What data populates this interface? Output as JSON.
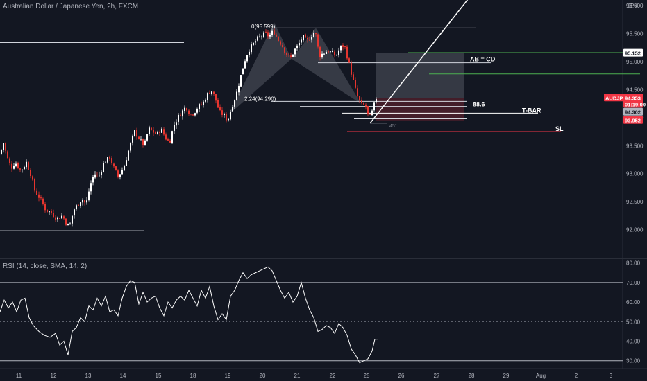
{
  "header": {
    "title": "Australian Dollar / Japanese Yen, 2h, FXCM"
  },
  "rsi": {
    "title": "RSI (14, close, SMA, 14, 2)"
  },
  "colors": {
    "bg": "#131722",
    "grid": "#1e222d",
    "up": "#ffffff",
    "down": "#e5352f",
    "text": "#b2b5be",
    "red": "#f23645",
    "green": "#4caf50"
  },
  "chart_data": [
    {
      "type": "candlestick",
      "title": "Australian Dollar / Japanese Yen, 2h, FXCM",
      "currency": "JPY",
      "y_ticks": [
        96.0,
        95.5,
        95.0,
        94.5,
        94.0,
        93.5,
        93.0,
        92.5,
        92.0
      ],
      "y_tick_labels": [
        "96.000",
        "95.500",
        "95.000",
        "94.500",
        "94.000",
        "93.500",
        "93.000",
        "92.500",
        "92.000"
      ],
      "ylim": [
        91.5,
        96.1
      ],
      "x_labels": [
        "11",
        "12",
        "13",
        "14",
        "15",
        "18",
        "19",
        "20",
        "21",
        "22",
        "25",
        "26",
        "27",
        "28",
        "29",
        "Aug",
        "2",
        "3"
      ],
      "path_anchors": [
        [
          0,
          93.35
        ],
        [
          5,
          93.55
        ],
        [
          10,
          93.3
        ],
        [
          16,
          93.1
        ],
        [
          22,
          93.2
        ],
        [
          30,
          93.05
        ],
        [
          38,
          93.2
        ],
        [
          44,
          93.0
        ],
        [
          50,
          92.7
        ],
        [
          58,
          92.55
        ],
        [
          66,
          92.35
        ],
        [
          74,
          92.3
        ],
        [
          82,
          92.2
        ],
        [
          90,
          92.25
        ],
        [
          96,
          92.1
        ],
        [
          100,
          92.05
        ],
        [
          106,
          92.35
        ],
        [
          112,
          92.45
        ],
        [
          118,
          92.55
        ],
        [
          124,
          92.45
        ],
        [
          130,
          92.8
        ],
        [
          136,
          93.0
        ],
        [
          142,
          92.95
        ],
        [
          150,
          93.2
        ],
        [
          158,
          93.3
        ],
        [
          164,
          93.1
        ],
        [
          170,
          92.95
        ],
        [
          178,
          93.1
        ],
        [
          186,
          93.45
        ],
        [
          194,
          93.75
        ],
        [
          202,
          93.6
        ],
        [
          208,
          93.5
        ],
        [
          214,
          93.8
        ],
        [
          220,
          93.75
        ],
        [
          226,
          93.7
        ],
        [
          232,
          93.8
        ],
        [
          238,
          93.65
        ],
        [
          244,
          93.55
        ],
        [
          250,
          93.85
        ],
        [
          256,
          94.0
        ],
        [
          262,
          94.1
        ],
        [
          268,
          94.2
        ],
        [
          274,
          94.05
        ],
        [
          280,
          94.1
        ],
        [
          286,
          94.2
        ],
        [
          292,
          94.25
        ],
        [
          298,
          94.4
        ],
        [
          304,
          94.5
        ],
        [
          310,
          94.35
        ],
        [
          316,
          94.1
        ],
        [
          322,
          94.05
        ],
        [
          328,
          93.95
        ],
        [
          334,
          94.2
        ],
        [
          340,
          94.4
        ],
        [
          346,
          94.7
        ],
        [
          352,
          95.0
        ],
        [
          358,
          95.2
        ],
        [
          364,
          95.3
        ],
        [
          370,
          95.4
        ],
        [
          376,
          95.45
        ],
        [
          382,
          95.5
        ],
        [
          388,
          95.45
        ],
        [
          394,
          95.55
        ],
        [
          400,
          95.4
        ],
        [
          406,
          95.3
        ],
        [
          412,
          95.15
        ],
        [
          418,
          95.05
        ],
        [
          424,
          95.2
        ],
        [
          430,
          95.3
        ],
        [
          436,
          95.45
        ],
        [
          442,
          95.35
        ],
        [
          448,
          95.45
        ],
        [
          454,
          95.55
        ],
        [
          460,
          95.1
        ],
        [
          466,
          95.15
        ],
        [
          472,
          95.2
        ],
        [
          478,
          95.15
        ],
        [
          484,
          95.1
        ],
        [
          490,
          95.25
        ],
        [
          496,
          95.3
        ],
        [
          502,
          95.0
        ],
        [
          506,
          94.8
        ],
        [
          510,
          94.6
        ],
        [
          514,
          94.4
        ],
        [
          518,
          94.3
        ],
        [
          522,
          94.2
        ],
        [
          526,
          94.25
        ],
        [
          530,
          94.05
        ],
        [
          534,
          94.0
        ],
        [
          538,
          94.2
        ],
        [
          542,
          94.35
        ]
      ],
      "horizontal_lines": [
        {
          "price": 95.6,
          "x_from": 390,
          "x_to": 685,
          "color": "#d1d4dc"
        },
        {
          "price": 95.34,
          "x_from": 0,
          "x_to": 265,
          "color": "#d1d4dc"
        },
        {
          "price": 95.16,
          "x_from": 588,
          "x_to": 922,
          "color": "#4caf50"
        },
        {
          "price": 94.98,
          "x_from": 458,
          "x_to": 708,
          "color": "#d1d4dc"
        },
        {
          "price": 94.78,
          "x_from": 618,
          "x_to": 922,
          "color": "#4caf50"
        },
        {
          "price": 94.29,
          "x_from": 390,
          "x_to": 672,
          "color": "#d1d4dc"
        },
        {
          "price": 94.2,
          "x_from": 432,
          "x_to": 672,
          "color": "#d1d4dc"
        },
        {
          "price": 94.08,
          "x_from": 492,
          "x_to": 775,
          "color": "#ffffff"
        },
        {
          "price": 93.98,
          "x_from": 510,
          "x_to": 672,
          "color": "#d1d4dc"
        },
        {
          "price": 93.75,
          "x_from": 500,
          "x_to": 808,
          "color": "#f23645"
        },
        {
          "price": 91.98,
          "x_from": 0,
          "x_to": 207,
          "color": "#d1d4dc"
        },
        {
          "price": 94.353,
          "x_from": 0,
          "x_to": 872,
          "color": "#f23645",
          "dashed": true
        }
      ],
      "labels": [
        {
          "text": "0(95.599)",
          "price": 95.63,
          "x": 362,
          "size": 8
        },
        {
          "text": "2.24(94.290)",
          "price": 94.34,
          "x": 352,
          "size": 8
        },
        {
          "text": "AB = CD",
          "price": 95.04,
          "x": 677,
          "size": 9,
          "bold": true
        },
        {
          "text": "88.6",
          "price": 94.24,
          "x": 681,
          "size": 9,
          "bold": true
        },
        {
          "text": "T-BAR",
          "price": 94.13,
          "x": 752,
          "size": 9,
          "bold": true
        },
        {
          "text": "SL",
          "price": 93.8,
          "x": 800,
          "size": 9,
          "bold": true
        },
        {
          "text": "45°",
          "price": 93.86,
          "x": 561,
          "size": 7,
          "color": "#787b86"
        }
      ],
      "position_box": {
        "x_from": 541,
        "x_to": 668,
        "profit_top": 95.16,
        "entry": 94.35,
        "stop": 93.95
      },
      "trend_line": {
        "from": [
          533,
          93.9
        ],
        "to": [
          686,
          96.3
        ]
      },
      "pattern_points": [
        [
          330,
          94.06
        ],
        [
          395,
          95.7
        ],
        [
          420,
          95.05
        ],
        [
          455,
          95.6
        ],
        [
          520,
          94.25
        ]
      ],
      "price_labels": [
        {
          "text": "95.152",
          "price": 95.152,
          "bg": "#ffffff",
          "fg": "#131722"
        },
        {
          "text": "AUDJPY",
          "price": 94.353,
          "bg": "#f23645",
          "fg": "#ffffff",
          "side": "left"
        },
        {
          "text": "94.353",
          "price": 94.353,
          "bg": "#f23645",
          "fg": "#ffffff"
        },
        {
          "text": "01:19:00",
          "price": 94.24,
          "bg": "#f23645",
          "fg": "#ffffff"
        },
        {
          "text": "94.302",
          "price": 94.1,
          "bg": "#b2b5be",
          "fg": "#131722"
        },
        {
          "text": "93.952",
          "price": 93.952,
          "bg": "#f23645",
          "fg": "#ffffff"
        }
      ]
    },
    {
      "type": "line",
      "title": "RSI (14, close, SMA, 14, 2)",
      "y_ticks": [
        80,
        70,
        60,
        50,
        40,
        30
      ],
      "y_tick_labels": [
        "80.00",
        "70.00",
        "60.00",
        "50.00",
        "40.00",
        "30.00"
      ],
      "ylim": [
        26,
        82
      ],
      "levels": [
        70,
        50,
        30
      ],
      "series": [
        {
          "values": [
            [
              0,
              55
            ],
            [
              6,
              61
            ],
            [
              12,
              57
            ],
            [
              18,
              60
            ],
            [
              24,
              55
            ],
            [
              30,
              61
            ],
            [
              36,
              62
            ],
            [
              42,
              52
            ],
            [
              48,
              48
            ],
            [
              56,
              45
            ],
            [
              64,
              43
            ],
            [
              72,
              42
            ],
            [
              80,
              44
            ],
            [
              86,
              38
            ],
            [
              92,
              40
            ],
            [
              98,
              33
            ],
            [
              104,
              45
            ],
            [
              110,
              47
            ],
            [
              116,
              52
            ],
            [
              122,
              50
            ],
            [
              128,
              58
            ],
            [
              134,
              56
            ],
            [
              140,
              62
            ],
            [
              146,
              58
            ],
            [
              152,
              63
            ],
            [
              158,
              55
            ],
            [
              164,
              56
            ],
            [
              170,
              53
            ],
            [
              176,
              62
            ],
            [
              182,
              68
            ],
            [
              188,
              71
            ],
            [
              194,
              70
            ],
            [
              200,
              59
            ],
            [
              206,
              65
            ],
            [
              212,
              60
            ],
            [
              218,
              62
            ],
            [
              224,
              63
            ],
            [
              230,
              57
            ],
            [
              236,
              53
            ],
            [
              242,
              60
            ],
            [
              248,
              57
            ],
            [
              254,
              61
            ],
            [
              260,
              63
            ],
            [
              266,
              61
            ],
            [
              272,
              66
            ],
            [
              278,
              62
            ],
            [
              284,
              58
            ],
            [
              290,
              66
            ],
            [
              296,
              62
            ],
            [
              302,
              68
            ],
            [
              308,
              58
            ],
            [
              314,
              51
            ],
            [
              320,
              54
            ],
            [
              326,
              51
            ],
            [
              332,
              63
            ],
            [
              338,
              66
            ],
            [
              344,
              71
            ],
            [
              350,
              75
            ],
            [
              356,
              72
            ],
            [
              362,
              74
            ],
            [
              368,
              75
            ],
            [
              374,
              76
            ],
            [
              380,
              77
            ],
            [
              386,
              78
            ],
            [
              392,
              76
            ],
            [
              398,
              71
            ],
            [
              404,
              66
            ],
            [
              410,
              62
            ],
            [
              416,
              65
            ],
            [
              422,
              60
            ],
            [
              428,
              63
            ],
            [
              434,
              70
            ],
            [
              440,
              62
            ],
            [
              446,
              56
            ],
            [
              452,
              52
            ],
            [
              458,
              45
            ],
            [
              464,
              46
            ],
            [
              470,
              48
            ],
            [
              476,
              47
            ],
            [
              482,
              44
            ],
            [
              488,
              49
            ],
            [
              494,
              47
            ],
            [
              500,
              43
            ],
            [
              506,
              36
            ],
            [
              512,
              33
            ],
            [
              518,
              29
            ],
            [
              524,
              30
            ],
            [
              530,
              31
            ],
            [
              536,
              35
            ],
            [
              540,
              41
            ],
            [
              544,
              41
            ]
          ]
        }
      ]
    }
  ]
}
